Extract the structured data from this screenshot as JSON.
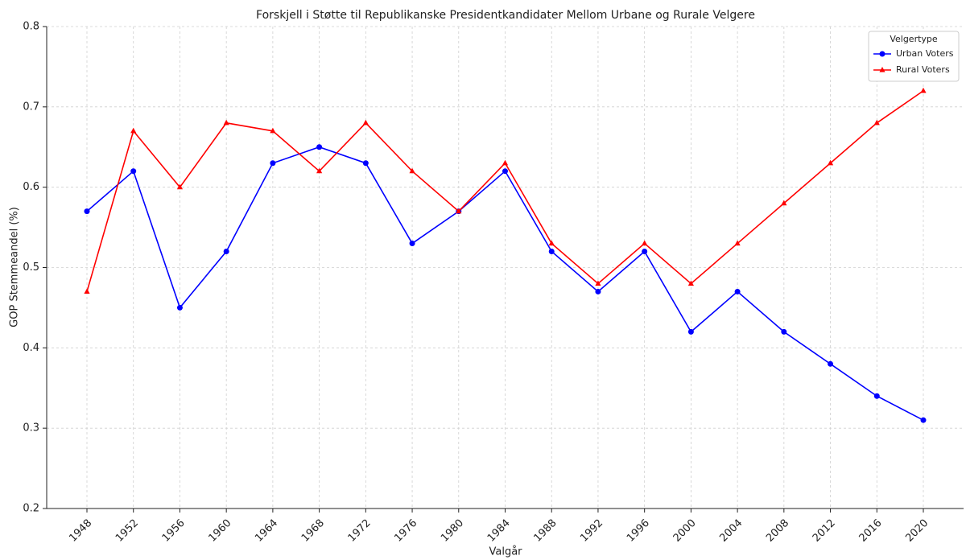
{
  "chart_data": {
    "type": "line",
    "title": "Forskjell i Støtte til Republikanske Presidentkandidater Mellom Urbane og Rurale Velgere",
    "x_label": "Valgår",
    "y_label": "GOP Stemmeandel (%)",
    "categories": [
      1948,
      1952,
      1956,
      1960,
      1964,
      1968,
      1972,
      1976,
      1980,
      1984,
      1988,
      1992,
      1996,
      2000,
      2004,
      2008,
      2012,
      2016,
      2020
    ],
    "series": [
      {
        "name": "Urban Voters",
        "color": "#0000ff",
        "marker": "circle",
        "values": [
          0.57,
          0.62,
          0.45,
          0.52,
          0.63,
          0.65,
          0.63,
          0.53,
          0.57,
          0.62,
          0.52,
          0.47,
          0.52,
          0.42,
          0.47,
          0.42,
          0.38,
          0.34,
          0.31
        ]
      },
      {
        "name": "Rural Voters",
        "color": "#ff0000",
        "marker": "triangle",
        "values": [
          0.47,
          0.67,
          0.6,
          0.68,
          0.67,
          0.62,
          0.68,
          0.62,
          0.57,
          0.63,
          0.53,
          0.48,
          0.53,
          0.48,
          0.53,
          0.58,
          0.63,
          0.68,
          0.72
        ]
      }
    ],
    "ylim": [
      0.2,
      0.8
    ],
    "yticks": [
      0.2,
      0.3,
      0.4,
      0.5,
      0.6,
      0.7,
      0.8
    ],
    "grid": true,
    "legend_title": "Velgertype",
    "legend_position": "upper right"
  }
}
